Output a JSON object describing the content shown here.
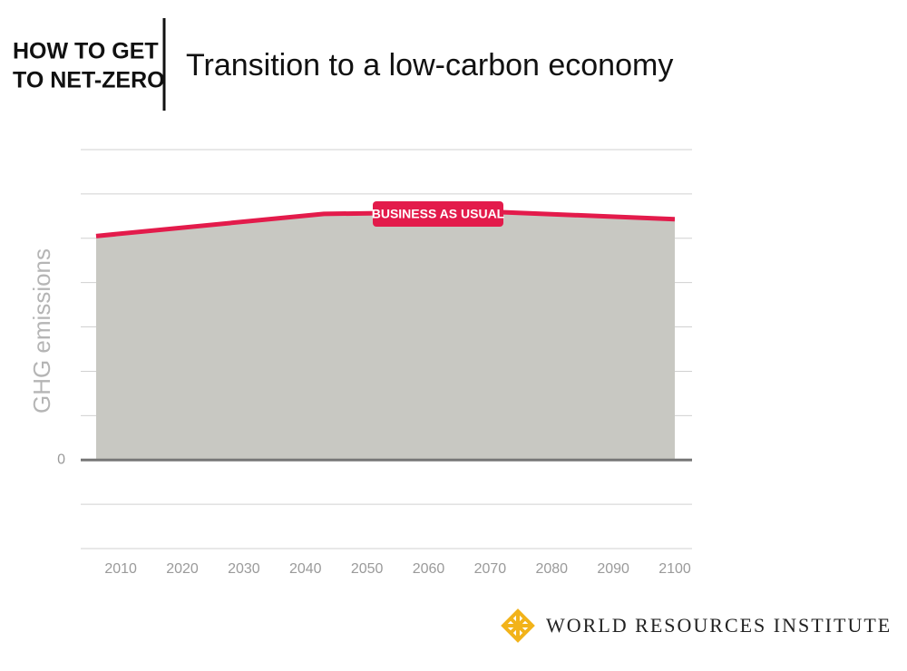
{
  "chart_data": {
    "type": "area",
    "kicker": [
      "HOW TO GET",
      "TO NET-ZERO"
    ],
    "title": "Transition to a low-carbon economy",
    "ylabel": "GHG emissions",
    "source": "WORLD RESOURCES INSTITUTE",
    "x": [
      2006,
      2043,
      2070,
      2100
    ],
    "series": [
      {
        "name": "BUSINESS AS USUAL",
        "color": "#e31b4b",
        "fill": "#c8c8c2",
        "values": [
          5.05,
          5.55,
          5.6,
          5.43
        ]
      }
    ],
    "xlim": [
      2003.5,
      2102.8
    ],
    "xticks": [
      2010,
      2020,
      2030,
      2040,
      2050,
      2060,
      2070,
      2080,
      2090,
      2100
    ],
    "ylim": [
      -2,
      7
    ],
    "yticks": [
      0
    ],
    "ygrid": [
      -2,
      -1,
      0,
      1,
      2,
      3,
      4,
      5,
      6,
      7
    ],
    "grid": true
  }
}
